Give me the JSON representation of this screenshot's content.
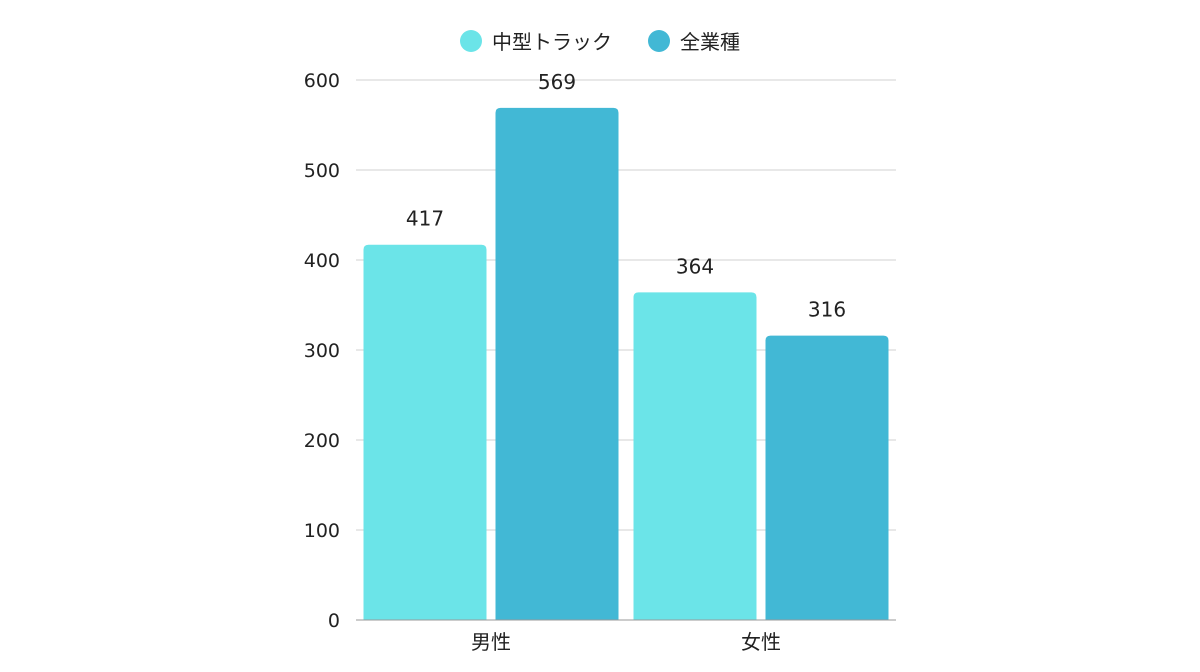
{
  "chart_data": {
    "type": "bar",
    "categories": [
      "男性",
      "女性"
    ],
    "series": [
      {
        "name": "中型トラック",
        "values": [
          417,
          364
        ],
        "color": "#6be4e8"
      },
      {
        "name": "全業種",
        "values": [
          569,
          316
        ],
        "color": "#42b8d5"
      }
    ],
    "ylim": [
      0,
      600
    ],
    "yticks": [
      0,
      100,
      200,
      300,
      400,
      500,
      600
    ],
    "grid": true,
    "legend_position": "top-center",
    "data_labels": true
  }
}
